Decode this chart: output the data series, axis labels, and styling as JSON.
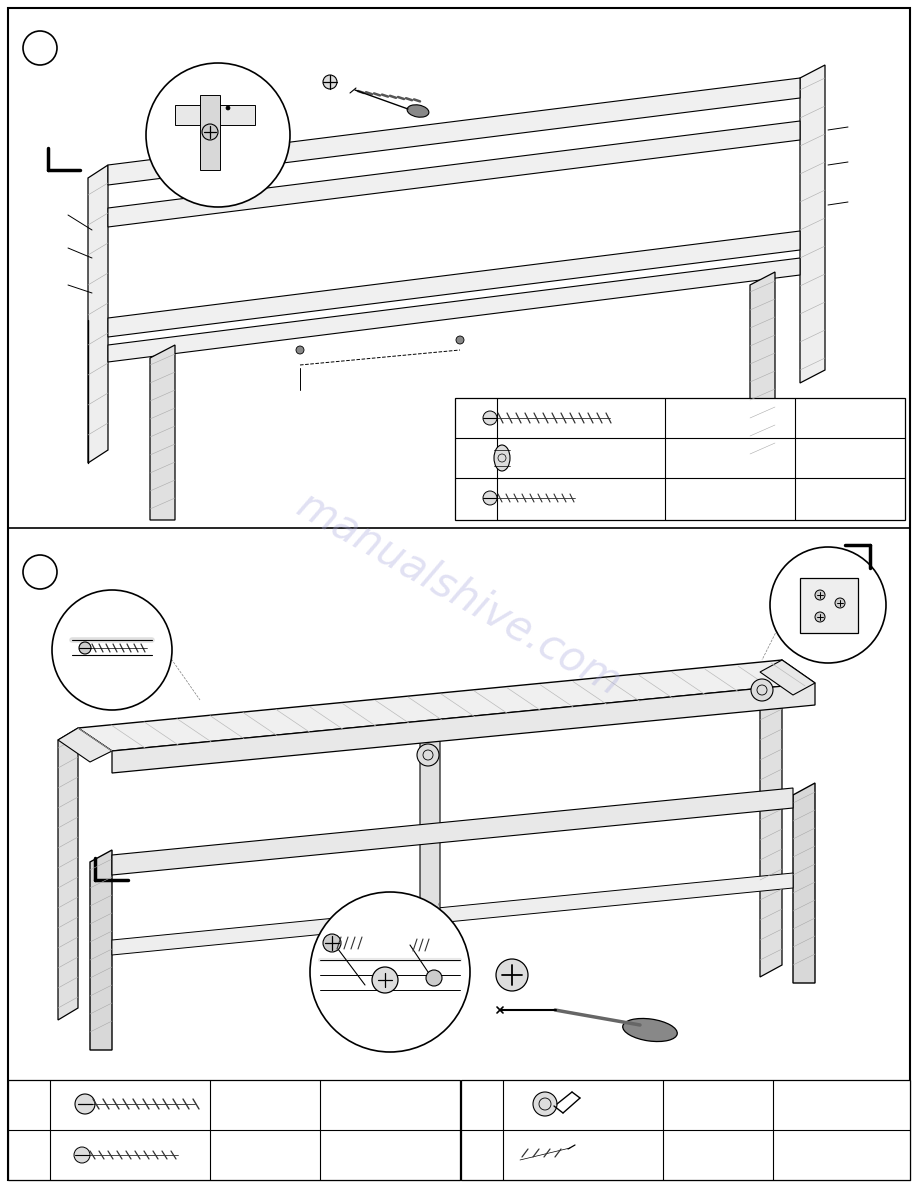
{
  "page_bg": "#ffffff",
  "border_color": "#000000",
  "line_color": "#000000",
  "watermark_color": "#aaaadd",
  "watermark_text": "manualshive.com",
  "watermark_alpha": 0.35
}
